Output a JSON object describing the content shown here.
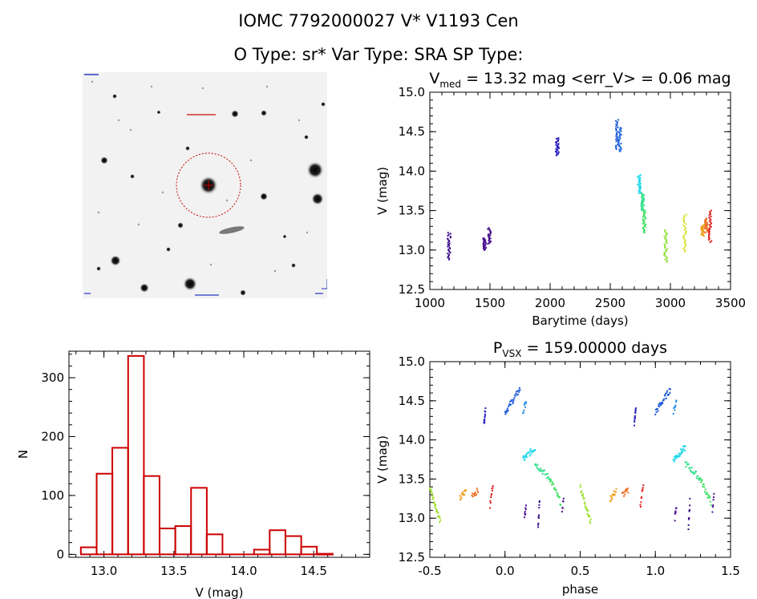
{
  "header": {
    "line1": "IOMC 7792000027    V* V1193 Cen",
    "line2": "O Type: sr*   Var Type: SRA   SP Type:"
  },
  "image_panel": {
    "description_icon": "star-field-image",
    "overlay_color": "#cc0000"
  },
  "chart_data": [
    {
      "type": "scatter",
      "title_parts": {
        "main": "V",
        "sub": "med",
        "rest": " = 13.32 mag <err_V> = 0.06 mag"
      },
      "xlabel": "Barytime (days)",
      "ylabel": "V (mag)",
      "xlim": [
        1000,
        3500
      ],
      "ylim": [
        15.0,
        12.5
      ],
      "xticks": [
        "1000",
        "1500",
        "2000",
        "2500",
        "3000",
        "3500"
      ],
      "yticks": [
        "12.5",
        "13.0",
        "13.5",
        "14.0",
        "14.5",
        "15.0"
      ],
      "color_scale": "rainbow (violet to red by time)",
      "segments": [
        {
          "x": 1160,
          "y_range": [
            12.88,
            13.22
          ],
          "color": "#3a0e8a"
        },
        {
          "x": 1455,
          "y_range": [
            13.0,
            13.15
          ],
          "color": "#4a1090"
        },
        {
          "x": 1495,
          "y_range": [
            13.08,
            13.28
          ],
          "color": "#4a1090"
        },
        {
          "x": 2060,
          "y_range": [
            14.2,
            14.42
          ],
          "color": "#2a20c0"
        },
        {
          "x": 2560,
          "y_range": [
            14.28,
            14.65
          ],
          "color": "#1e5ad8"
        },
        {
          "x": 2580,
          "y_range": [
            14.25,
            14.55
          ],
          "color": "#1f6ae0"
        },
        {
          "x": 2740,
          "y_range": [
            13.72,
            13.95
          ],
          "color": "#22d8e8"
        },
        {
          "x": 2770,
          "y_range": [
            13.5,
            13.72
          ],
          "color": "#30e08a"
        },
        {
          "x": 2785,
          "y_range": [
            13.22,
            13.5
          ],
          "color": "#3ee060"
        },
        {
          "x": 2960,
          "y_range": [
            12.85,
            13.25
          ],
          "color": "#8ee030"
        },
        {
          "x": 3120,
          "y_range": [
            12.98,
            13.45
          ],
          "color": "#d8e030"
        },
        {
          "x": 3270,
          "y_range": [
            13.18,
            13.32
          ],
          "color": "#f0a020"
        },
        {
          "x": 3300,
          "y_range": [
            13.22,
            13.4
          ],
          "color": "#f07020"
        },
        {
          "x": 3330,
          "y_range": [
            13.1,
            13.5
          ],
          "color": "#e02020"
        }
      ]
    },
    {
      "type": "bar",
      "title": "",
      "xlabel": "V (mag)",
      "ylabel": "N",
      "xlim": [
        12.75,
        14.9
      ],
      "ylim": [
        -5,
        345
      ],
      "xticks": [
        "13.0",
        "13.5",
        "14.0",
        "14.5"
      ],
      "yticks": [
        "0",
        "100",
        "200",
        "300"
      ],
      "bar_color": "#cc0000",
      "bin_width": 0.1125,
      "bins": [
        {
          "left": 12.835,
          "count": 12
        },
        {
          "left": 12.948,
          "count": 137
        },
        {
          "left": 13.06,
          "count": 181
        },
        {
          "left": 13.173,
          "count": 337
        },
        {
          "left": 13.285,
          "count": 133
        },
        {
          "left": 13.398,
          "count": 44
        },
        {
          "left": 13.51,
          "count": 48
        },
        {
          "left": 13.623,
          "count": 113
        },
        {
          "left": 13.735,
          "count": 34
        },
        {
          "left": 13.848,
          "count": 0
        },
        {
          "left": 13.96,
          "count": 0
        },
        {
          "left": 14.073,
          "count": 8
        },
        {
          "left": 14.185,
          "count": 41
        },
        {
          "left": 14.298,
          "count": 31
        },
        {
          "left": 14.41,
          "count": 13
        },
        {
          "left": 14.523,
          "count": 1
        }
      ]
    },
    {
      "type": "scatter",
      "title_parts": {
        "main": "P",
        "sub": "VSX",
        "rest": " = 159.00000 days"
      },
      "xlabel": "phase",
      "ylabel": "V (mag)",
      "xlim": [
        -0.5,
        1.5
      ],
      "ylim": [
        15.0,
        12.5
      ],
      "xticks": [
        "-0.5",
        "0.0",
        "0.5",
        "1.0",
        "1.5"
      ],
      "yticks": [
        "12.5",
        "13.0",
        "13.5",
        "14.0",
        "14.5",
        "15.0"
      ],
      "groups": [
        {
          "x": [
            -0.5,
            -0.43
          ],
          "y": [
            13.4,
            12.95
          ],
          "color": "#9ce030",
          "n": 30
        },
        {
          "x": [
            -0.3,
            -0.26
          ],
          "y": [
            13.25,
            13.35
          ],
          "color": "#f0a020",
          "n": 14
        },
        {
          "x": [
            -0.22,
            -0.18
          ],
          "y": [
            13.3,
            13.35
          ],
          "color": "#f07020",
          "n": 12
        },
        {
          "x": [
            -0.1,
            -0.08
          ],
          "y": [
            13.15,
            13.45
          ],
          "color": "#e02020",
          "n": 10
        },
        {
          "x": [
            -0.14,
            -0.13
          ],
          "y": [
            14.2,
            14.4
          ],
          "color": "#2a20c0",
          "n": 12
        },
        {
          "x": [
            0.0,
            0.1
          ],
          "y": [
            14.35,
            14.65
          ],
          "color": "#1e5ad8",
          "n": 30
        },
        {
          "x": [
            0.12,
            0.14
          ],
          "y": [
            14.35,
            14.5
          ],
          "color": "#1f8ae8",
          "n": 8
        },
        {
          "x": [
            0.12,
            0.2
          ],
          "y": [
            13.75,
            13.9
          ],
          "color": "#22d8e8",
          "n": 30
        },
        {
          "x": [
            0.2,
            0.3
          ],
          "y": [
            13.7,
            13.5
          ],
          "color": "#30e08a",
          "n": 25
        },
        {
          "x": [
            0.3,
            0.37
          ],
          "y": [
            13.5,
            13.2
          ],
          "color": "#3ee060",
          "n": 20
        },
        {
          "x": [
            0.13,
            0.14
          ],
          "y": [
            13.0,
            13.15
          ],
          "color": "#4a1090",
          "n": 8
        },
        {
          "x": [
            0.22,
            0.23
          ],
          "y": [
            12.88,
            13.22
          ],
          "color": "#3a0e8a",
          "n": 10
        },
        {
          "x": [
            0.38,
            0.39
          ],
          "y": [
            13.08,
            13.28
          ],
          "color": "#4a1090",
          "n": 6
        },
        {
          "x": [
            0.5,
            0.57
          ],
          "y": [
            13.4,
            12.95
          ],
          "color": "#9ce030",
          "n": 30
        },
        {
          "x": [
            0.7,
            0.74
          ],
          "y": [
            13.25,
            13.35
          ],
          "color": "#f0a020",
          "n": 14
        },
        {
          "x": [
            0.78,
            0.82
          ],
          "y": [
            13.3,
            13.35
          ],
          "color": "#f07020",
          "n": 12
        },
        {
          "x": [
            0.9,
            0.92
          ],
          "y": [
            13.15,
            13.45
          ],
          "color": "#e02020",
          "n": 10
        },
        {
          "x": [
            0.86,
            0.87
          ],
          "y": [
            14.2,
            14.4
          ],
          "color": "#2a20c0",
          "n": 12
        },
        {
          "x": [
            1.0,
            1.1
          ],
          "y": [
            14.35,
            14.65
          ],
          "color": "#1e5ad8",
          "n": 30
        },
        {
          "x": [
            1.12,
            1.14
          ],
          "y": [
            14.35,
            14.5
          ],
          "color": "#1f8ae8",
          "n": 8
        },
        {
          "x": [
            1.12,
            1.2
          ],
          "y": [
            13.75,
            13.9
          ],
          "color": "#22d8e8",
          "n": 30
        },
        {
          "x": [
            1.2,
            1.3
          ],
          "y": [
            13.7,
            13.5
          ],
          "color": "#30e08a",
          "n": 25
        },
        {
          "x": [
            1.3,
            1.37
          ],
          "y": [
            13.5,
            13.2
          ],
          "color": "#3ee060",
          "n": 20
        },
        {
          "x": [
            1.13,
            1.14
          ],
          "y": [
            13.0,
            13.15
          ],
          "color": "#4a1090",
          "n": 8
        },
        {
          "x": [
            1.22,
            1.23
          ],
          "y": [
            12.88,
            13.22
          ],
          "color": "#3a0e8a",
          "n": 10
        },
        {
          "x": [
            1.38,
            1.39
          ],
          "y": [
            13.08,
            13.28
          ],
          "color": "#4a1090",
          "n": 6
        }
      ]
    }
  ]
}
